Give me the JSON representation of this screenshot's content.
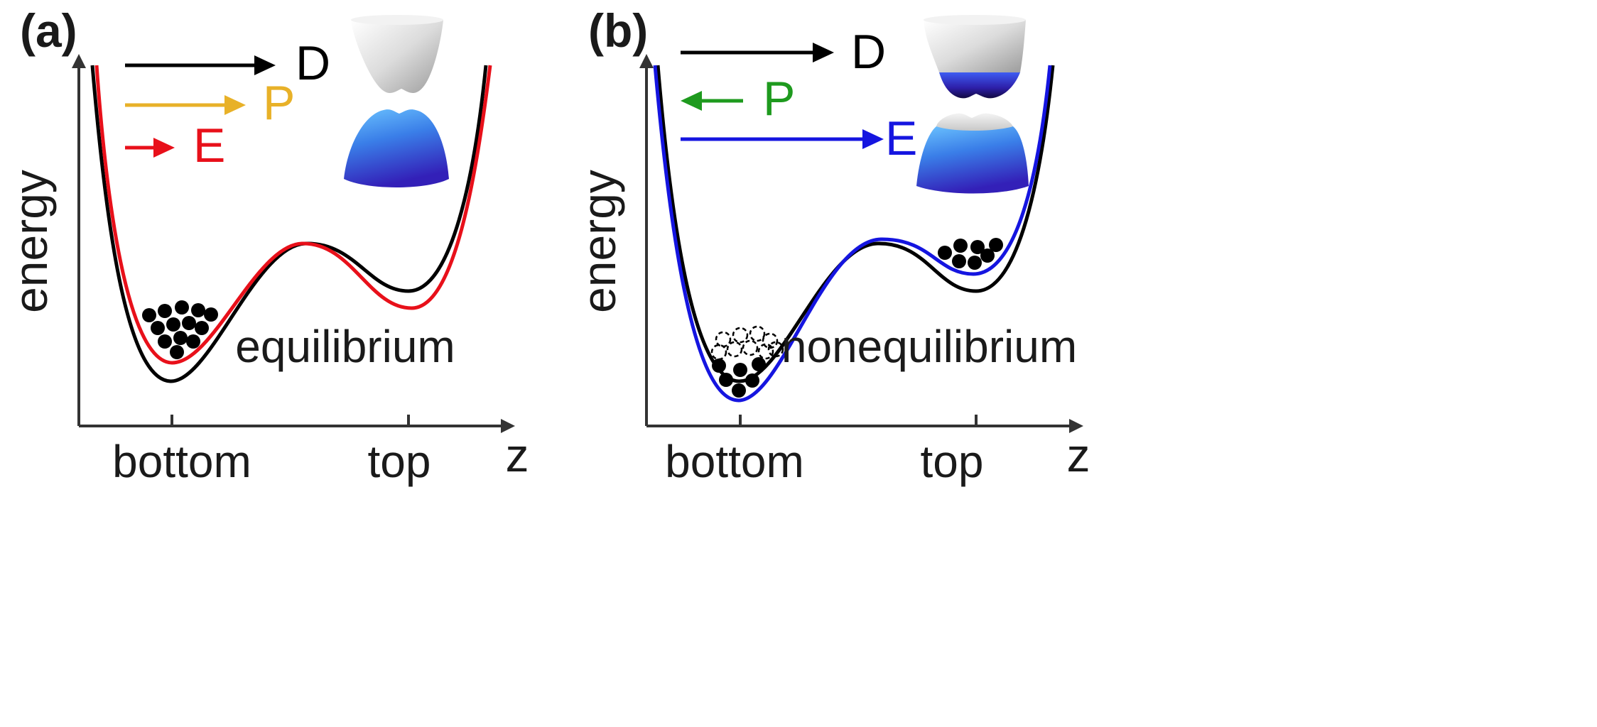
{
  "figure": {
    "panels": [
      {
        "id": "a",
        "label": "(a)",
        "y_axis_label": "energy",
        "x_axis_label": "z",
        "tick_labels": [
          "bottom",
          "top"
        ],
        "state_label": "equilibrium",
        "arrows": [
          {
            "symbol": "D",
            "color": "#000000",
            "direction": "right",
            "length": "long"
          },
          {
            "symbol": "P",
            "color": "#E8B128",
            "direction": "right",
            "length": "medium"
          },
          {
            "symbol": "E",
            "color": "#E8101A",
            "direction": "right",
            "length": "short"
          }
        ],
        "curves": [
          {
            "name": "reference potential",
            "color": "#000000"
          },
          {
            "name": "field-tilted potential",
            "color": "#E8101A"
          }
        ],
        "particles_at": "bottom"
      },
      {
        "id": "b",
        "label": "(b)",
        "y_axis_label": "energy",
        "x_axis_label": "z",
        "tick_labels": [
          "bottom",
          "top"
        ],
        "state_label": "nonequilibrium",
        "arrows": [
          {
            "symbol": "D",
            "color": "#000000",
            "direction": "right",
            "length": "long"
          },
          {
            "symbol": "P",
            "color": "#1E9A1E",
            "direction": "left",
            "length": "short"
          },
          {
            "symbol": "E",
            "color": "#1515E0",
            "direction": "right",
            "length": "long"
          }
        ],
        "curves": [
          {
            "name": "reference potential",
            "color": "#000000"
          },
          {
            "name": "field-tilted potential",
            "color": "#1515E0"
          }
        ],
        "particles_at": "bottom and top"
      }
    ]
  }
}
